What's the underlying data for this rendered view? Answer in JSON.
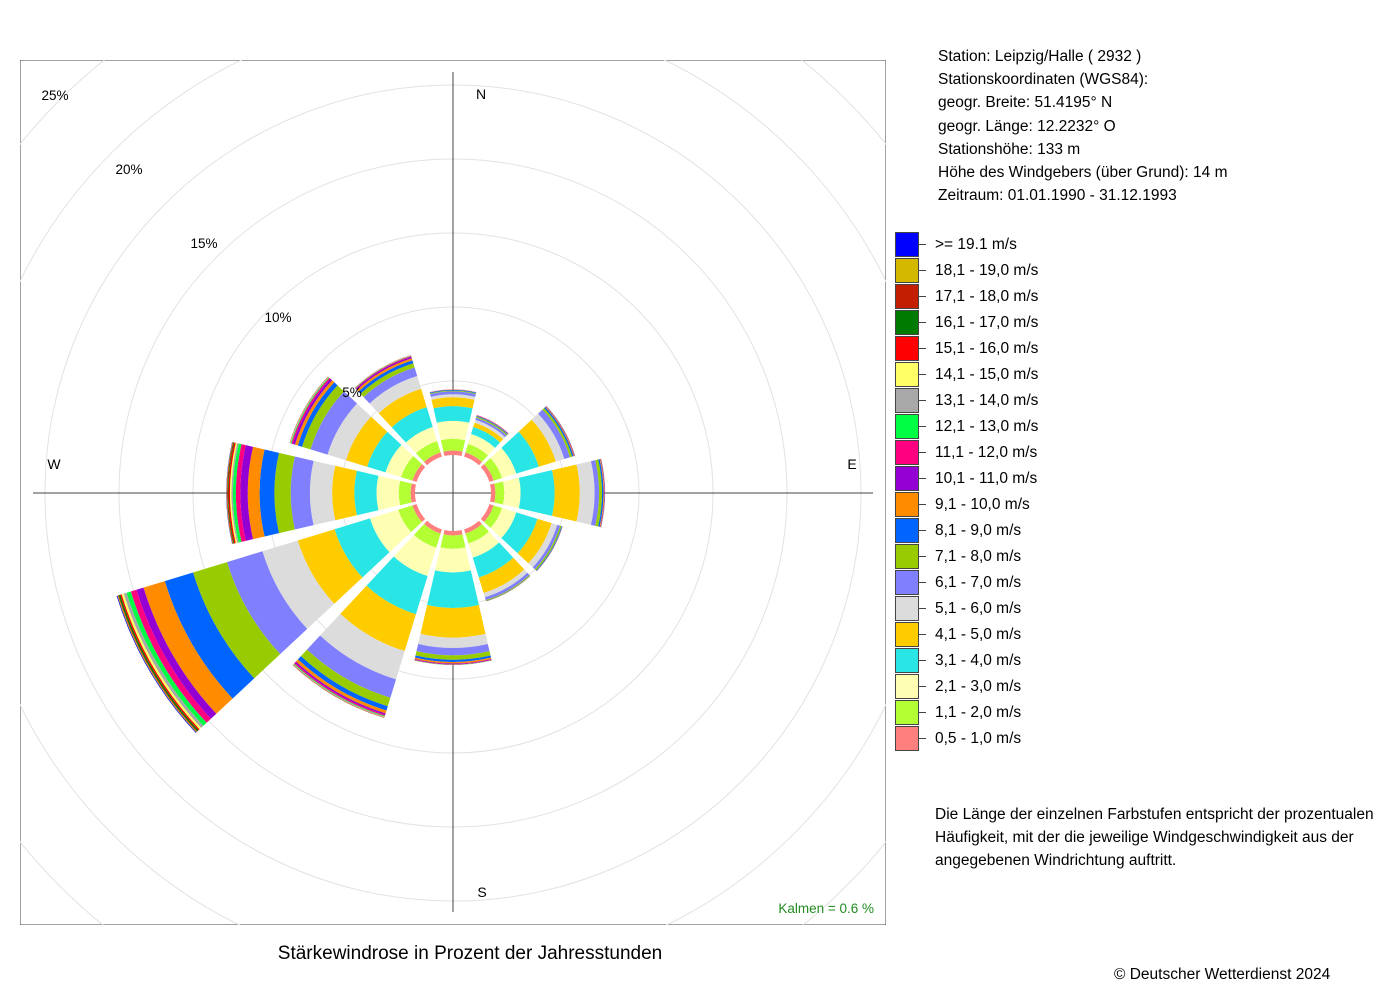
{
  "header": {
    "station": "Station:  Leipzig/Halle  ( 2932 )",
    "coords_title": "Stationskoordinaten (WGS84):",
    "lat": "geogr. Breite: 51.4195° N",
    "lon": "geogr. Länge: 12.2232° O",
    "elevation": "Stationshöhe: 133 m",
    "sensor_height": "Höhe des Windgebers (über Grund): 14 m",
    "period": "Zeitraum: 01.01.1990 - 31.12.1993"
  },
  "legend": [
    {
      "label": ">= 19.1 m/s",
      "color": "#0000ff"
    },
    {
      "label": "18,1 - 19,0 m/s",
      "color": "#d4b800"
    },
    {
      "label": "17,1 - 18,0 m/s",
      "color": "#c41e00"
    },
    {
      "label": "16,1 - 17,0 m/s",
      "color": "#007a00"
    },
    {
      "label": "15,1 - 16,0 m/s",
      "color": "#ff0000"
    },
    {
      "label": "14,1 - 15,0 m/s",
      "color": "#ffff66"
    },
    {
      "label": "13,1 - 14,0 m/s",
      "color": "#a8a8a8"
    },
    {
      "label": "12,1 - 13,0 m/s",
      "color": "#00ff44"
    },
    {
      "label": "11,1 - 12,0 m/s",
      "color": "#ff0080"
    },
    {
      "label": "10,1 - 11,0 m/s",
      "color": "#9400d3"
    },
    {
      "label": "9,1 - 10,0 m/s",
      "color": "#ff8c00"
    },
    {
      "label": "8,1 - 9,0 m/s",
      "color": "#0064ff"
    },
    {
      "label": "7,1 - 8,0 m/s",
      "color": "#99cc00"
    },
    {
      "label": "6,1 - 7,0 m/s",
      "color": "#8080ff"
    },
    {
      "label": "5,1 - 6,0 m/s",
      "color": "#dcdcdc"
    },
    {
      "label": "4,1 - 5,0 m/s",
      "color": "#ffcc00"
    },
    {
      "label": "3,1 - 4,0 m/s",
      "color": "#29e5e5"
    },
    {
      "label": "2,1 - 3,0 m/s",
      "color": "#ffffb3"
    },
    {
      "label": "1,1 - 2,0 m/s",
      "color": "#b3ff33"
    },
    {
      "label": "0,5 - 1,0 m/s",
      "color": "#ff7f7f"
    }
  ],
  "note": "Die Länge der einzelnen Farbstufen entspricht der prozentualen Häufigkeit, mit der die jeweilige Windgeschwindigkeit aus der angegebenen Windrichtung auftritt.",
  "title": "Stärkewindrose in Prozent der Jahresstunden",
  "copyright": "© Deutscher Wetterdienst  2024",
  "chart_data": {
    "type": "windrose",
    "unit": "%",
    "calm_label": "Kalmen  =  0.6 %",
    "calm_percent": 0.6,
    "radial_ticks": [
      "5%",
      "10%",
      "15%",
      "20%",
      "25%"
    ],
    "radial_tick_values": [
      5,
      10,
      15,
      20,
      25
    ],
    "directions": [
      "N",
      "E",
      "S",
      "W"
    ],
    "sector_angles": [
      0,
      30,
      60,
      90,
      120,
      150,
      180,
      210,
      240,
      270,
      300,
      330
    ],
    "speed_classes": [
      "0,5 - 1,0 m/s",
      "1,1 - 2,0 m/s",
      "2,1 - 3,0 m/s",
      "3,1 - 4,0 m/s",
      "4,1 - 5,0 m/s",
      "5,1 - 6,0 m/s",
      "6,1 - 7,0 m/s",
      "7,1 - 8,0 m/s",
      "8,1 - 9,0 m/s",
      "9,1 - 10,0 m/s",
      "10,1 - 11,0 m/s",
      "11,1 - 12,0 m/s",
      "12,1 - 13,0 m/s",
      "13,1 - 14,0 m/s",
      "14,1 - 15,0 m/s",
      "15,1 - 16,0 m/s",
      "16,1 - 17,0 m/s",
      "17,1 - 18,0 m/s",
      "18,1 - 19,0 m/s",
      ">= 19.1 m/s"
    ],
    "series": [
      {
        "direction": 0,
        "values": [
          0.3,
          0.8,
          1.2,
          1.0,
          0.6,
          0.2,
          0.2,
          0.05,
          0.05,
          0.02,
          0.01,
          0.0,
          0.0,
          0.0,
          0.0,
          0.0,
          0.0,
          0.0,
          0.0,
          0.0
        ]
      },
      {
        "direction": 30,
        "values": [
          0.3,
          0.6,
          0.7,
          0.5,
          0.3,
          0.2,
          0.15,
          0.08,
          0.05,
          0.03,
          0.02,
          0.01,
          0.0,
          0.0,
          0.0,
          0.0,
          0.0,
          0.0,
          0.0,
          0.0
        ]
      },
      {
        "direction": 60,
        "values": [
          0.3,
          0.6,
          1.0,
          1.6,
          1.2,
          0.6,
          0.4,
          0.15,
          0.1,
          0.05,
          0.03,
          0.02,
          0.01,
          0.0,
          0.0,
          0.0,
          0.0,
          0.0,
          0.0,
          0.0
        ]
      },
      {
        "direction": 90,
        "values": [
          0.3,
          0.6,
          1.1,
          2.3,
          1.7,
          1.0,
          0.3,
          0.2,
          0.1,
          0.05,
          0.03,
          0.02,
          0.01,
          0.0,
          0.0,
          0.0,
          0.0,
          0.0,
          0.0,
          0.0
        ]
      },
      {
        "direction": 120,
        "values": [
          0.3,
          0.6,
          1.0,
          1.5,
          1.0,
          0.4,
          0.2,
          0.1,
          0.05,
          0.02,
          0.01,
          0.0,
          0.0,
          0.0,
          0.0,
          0.0,
          0.0,
          0.0,
          0.0,
          0.0
        ]
      },
      {
        "direction": 150,
        "values": [
          0.3,
          0.7,
          1.0,
          1.4,
          1.1,
          0.3,
          0.2,
          0.05,
          0.03,
          0.02,
          0.0,
          0.0,
          0.0,
          0.0,
          0.0,
          0.0,
          0.0,
          0.0,
          0.0,
          0.0
        ]
      },
      {
        "direction": 180,
        "values": [
          0.3,
          0.9,
          1.6,
          2.4,
          2.0,
          0.7,
          0.5,
          0.3,
          0.15,
          0.1,
          0.05,
          0.03,
          0.02,
          0.01,
          0.0,
          0.0,
          0.0,
          0.0,
          0.0,
          0.0
        ]
      },
      {
        "direction": 210,
        "values": [
          0.3,
          1.0,
          2.0,
          2.7,
          2.6,
          2.0,
          1.3,
          0.6,
          0.3,
          0.2,
          0.1,
          0.08,
          0.05,
          0.03,
          0.02,
          0.02,
          0.01,
          0.01,
          0.0,
          0.0
        ]
      },
      {
        "direction": 240,
        "values": [
          0.3,
          1.0,
          2.0,
          2.5,
          2.6,
          2.5,
          2.5,
          2.4,
          2.0,
          1.5,
          0.5,
          0.4,
          0.3,
          0.2,
          0.15,
          0.1,
          0.1,
          0.05,
          0.05,
          0.05
        ]
      },
      {
        "direction": 270,
        "values": [
          0.3,
          0.8,
          1.5,
          1.5,
          1.5,
          1.5,
          1.3,
          1.1,
          1.0,
          0.8,
          0.5,
          0.3,
          0.2,
          0.1,
          0.1,
          0.1,
          0.05,
          0.05,
          0.03,
          0.02
        ]
      },
      {
        "direction": 300,
        "values": [
          0.3,
          0.8,
          1.1,
          1.3,
          1.5,
          1.3,
          1.2,
          0.6,
          0.3,
          0.2,
          0.15,
          0.1,
          0.05,
          0.03,
          0.02,
          0.02,
          0.01,
          0.0,
          0.0,
          0.0
        ]
      },
      {
        "direction": 330,
        "values": [
          0.3,
          0.8,
          1.0,
          1.4,
          1.3,
          0.9,
          0.6,
          0.3,
          0.2,
          0.15,
          0.1,
          0.05,
          0.03,
          0.02,
          0.01,
          0.01,
          0.0,
          0.0,
          0.0,
          0.0
        ]
      }
    ]
  }
}
